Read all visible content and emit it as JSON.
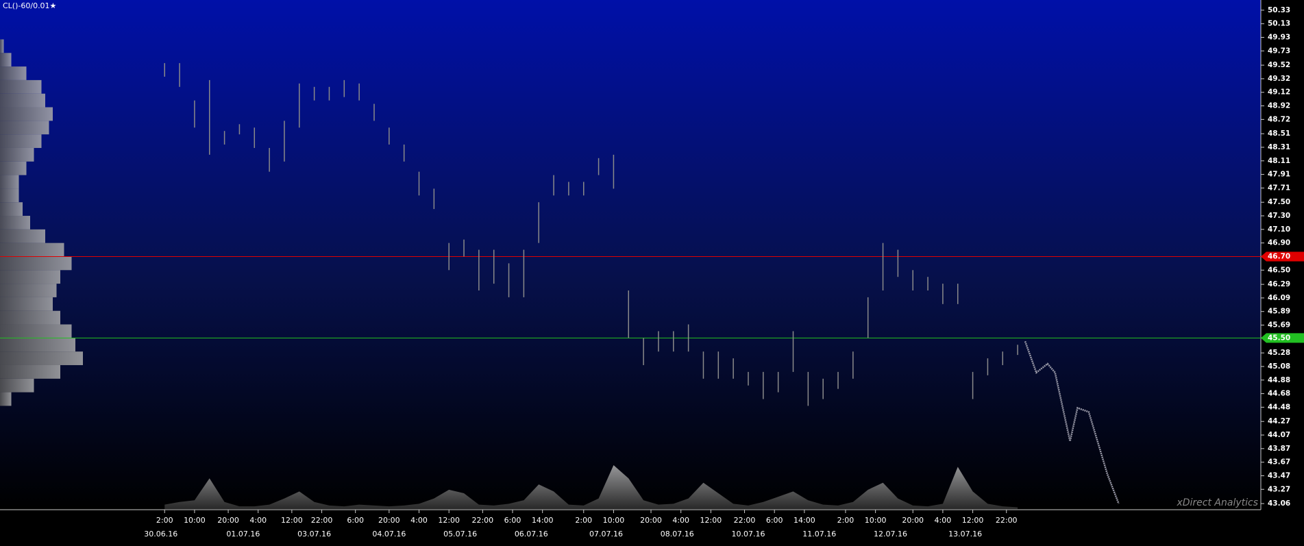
{
  "chart_data": {
    "type": "ohlc",
    "title": "CL()-60/0.01★",
    "watermark": "xDirect Analytics",
    "x": [
      0,
      4,
      8,
      12,
      16,
      20,
      24,
      28,
      32,
      36,
      40,
      44,
      48,
      52,
      56,
      60,
      64,
      68,
      72,
      76,
      80,
      84,
      88,
      92,
      96,
      100,
      104,
      108,
      112,
      116,
      120,
      124,
      128,
      132,
      136,
      140,
      144,
      148,
      152,
      156,
      160,
      164,
      168,
      172,
      176,
      180,
      184,
      188,
      192,
      196,
      200,
      204,
      208,
      212,
      216,
      220,
      224,
      228
    ],
    "high": [
      49.55,
      49.55,
      49.0,
      49.3,
      48.55,
      48.65,
      48.6,
      48.3,
      48.7,
      49.25,
      49.2,
      49.2,
      49.3,
      49.25,
      48.95,
      48.6,
      48.35,
      47.95,
      47.7,
      46.9,
      46.95,
      46.8,
      46.8,
      46.6,
      46.8,
      47.5,
      47.9,
      47.8,
      47.8,
      48.15,
      48.2,
      46.2,
      45.5,
      45.6,
      45.6,
      45.7,
      45.3,
      45.3,
      45.2,
      45.0,
      45.0,
      45.0,
      45.6,
      45.0,
      44.9,
      45.0,
      45.3,
      46.1,
      46.9,
      46.8,
      46.5,
      46.4,
      46.3,
      46.3,
      45.0,
      45.2,
      45.3,
      45.4
    ],
    "low": [
      49.35,
      49.2,
      48.6,
      48.2,
      48.35,
      48.5,
      48.3,
      47.95,
      48.1,
      48.6,
      49.0,
      49.0,
      49.05,
      49.0,
      48.7,
      48.35,
      48.1,
      47.6,
      47.4,
      46.5,
      46.7,
      46.2,
      46.3,
      46.1,
      46.1,
      46.9,
      47.6,
      47.6,
      47.6,
      47.9,
      47.7,
      45.5,
      45.1,
      45.3,
      45.3,
      45.3,
      44.9,
      44.9,
      44.9,
      44.8,
      44.6,
      44.7,
      45.0,
      44.5,
      44.6,
      44.75,
      44.9,
      45.5,
      46.2,
      46.4,
      46.2,
      46.2,
      46.0,
      46.0,
      44.6,
      44.95,
      45.1,
      45.25
    ],
    "bar_color": "#8a8a8a",
    "volume": [
      5,
      8,
      10,
      35,
      8,
      3,
      3,
      5,
      12,
      20,
      8,
      4,
      3,
      5,
      4,
      3,
      4,
      6,
      12,
      22,
      18,
      5,
      4,
      6,
      10,
      28,
      20,
      5,
      4,
      12,
      50,
      35,
      10,
      5,
      6,
      12,
      30,
      18,
      6,
      4,
      8,
      14,
      20,
      10,
      5,
      4,
      8,
      22,
      30,
      12,
      4,
      3,
      6,
      48,
      20,
      6,
      3,
      2
    ],
    "volume_lim": [
      0,
      100
    ],
    "forecast": {
      "x": [
        230,
        233,
        236,
        238,
        242,
        244,
        247,
        252,
        255
      ],
      "values": [
        45.45,
        44.99,
        45.12,
        44.99,
        43.98,
        44.47,
        44.41,
        43.49,
        43.06
      ],
      "color": "#9a9aa8"
    },
    "levels": [
      {
        "value": 46.7,
        "label": "46.70",
        "color": "#e00000"
      },
      {
        "value": 45.5,
        "label": "45.50",
        "color": "#22c022"
      }
    ],
    "volume_profile": {
      "prices": [
        49.8,
        49.6,
        49.4,
        49.2,
        49.0,
        48.8,
        48.6,
        48.4,
        48.2,
        48.0,
        47.8,
        47.6,
        47.4,
        47.2,
        47.0,
        46.8,
        46.6,
        46.4,
        46.2,
        46.0,
        45.8,
        45.6,
        45.4,
        45.2,
        45.0,
        44.8,
        44.6
      ],
      "values": [
        5,
        15,
        35,
        55,
        60,
        70,
        65,
        55,
        45,
        35,
        25,
        25,
        30,
        40,
        60,
        85,
        95,
        80,
        75,
        70,
        80,
        95,
        100,
        110,
        80,
        45,
        15
      ]
    },
    "xlim": [
      -44,
      293
    ],
    "ylim": [
      42.98,
      50.48
    ],
    "xticks": [
      {
        "value": 0,
        "label": "2:00"
      },
      {
        "value": 8,
        "label": "10:00"
      },
      {
        "value": 17,
        "label": "20:00"
      },
      {
        "value": 25,
        "label": "4:00"
      },
      {
        "value": 34,
        "label": "12:00"
      },
      {
        "value": 42,
        "label": "22:00"
      },
      {
        "value": 51,
        "label": "6:00"
      },
      {
        "value": 60,
        "label": "20:00"
      },
      {
        "value": 68,
        "label": "4:00"
      },
      {
        "value": 76,
        "label": "12:00"
      },
      {
        "value": 85,
        "label": "22:00"
      },
      {
        "value": 93,
        "label": "6:00"
      },
      {
        "value": 101,
        "label": "14:00"
      },
      {
        "value": 112,
        "label": "2:00"
      },
      {
        "value": 120,
        "label": "10:00"
      },
      {
        "value": 130,
        "label": "20:00"
      },
      {
        "value": 138,
        "label": "4:00"
      },
      {
        "value": 146,
        "label": "12:00"
      },
      {
        "value": 155,
        "label": "22:00"
      },
      {
        "value": 163,
        "label": "6:00"
      },
      {
        "value": 171,
        "label": "14:00"
      },
      {
        "value": 182,
        "label": "2:00"
      },
      {
        "value": 190,
        "label": "10:00"
      },
      {
        "value": 200,
        "label": "20:00"
      },
      {
        "value": 208,
        "label": "4:00"
      },
      {
        "value": 216,
        "label": "12:00"
      },
      {
        "value": 225,
        "label": "22:00"
      }
    ],
    "date_ticks": [
      {
        "value": -1,
        "label": "30.06.16"
      },
      {
        "value": 21,
        "label": "01.07.16"
      },
      {
        "value": 40,
        "label": "03.07.16"
      },
      {
        "value": 60,
        "label": "04.07.16"
      },
      {
        "value": 79,
        "label": "05.07.16"
      },
      {
        "value": 98,
        "label": "06.07.16"
      },
      {
        "value": 118,
        "label": "07.07.16"
      },
      {
        "value": 137,
        "label": "08.07.16"
      },
      {
        "value": 156,
        "label": "10.07.16"
      },
      {
        "value": 175,
        "label": "11.07.16"
      },
      {
        "value": 194,
        "label": "12.07.16"
      },
      {
        "value": 214,
        "label": "13.07.16"
      }
    ],
    "yticks": [
      50.33,
      50.13,
      49.93,
      49.73,
      49.52,
      49.32,
      49.12,
      48.92,
      48.72,
      48.51,
      48.31,
      48.11,
      47.91,
      47.71,
      {
        "value": 47.5,
        "label": "47.50"
      },
      {
        "value": 47.3,
        "label": "47.30"
      },
      {
        "value": 47.1,
        "label": "47.10"
      },
      {
        "value": 46.9,
        "label": "46.90"
      },
      {
        "value": 46.7,
        "label": "46.70"
      },
      {
        "value": 46.5,
        "label": "46.50"
      },
      46.29,
      46.09,
      45.89,
      45.69,
      {
        "value": 45.5,
        "label": "45.50"
      },
      45.28,
      45.08,
      44.88,
      44.68,
      44.48,
      44.27,
      44.07,
      43.87,
      43.67,
      43.47,
      43.27,
      43.06
    ]
  }
}
